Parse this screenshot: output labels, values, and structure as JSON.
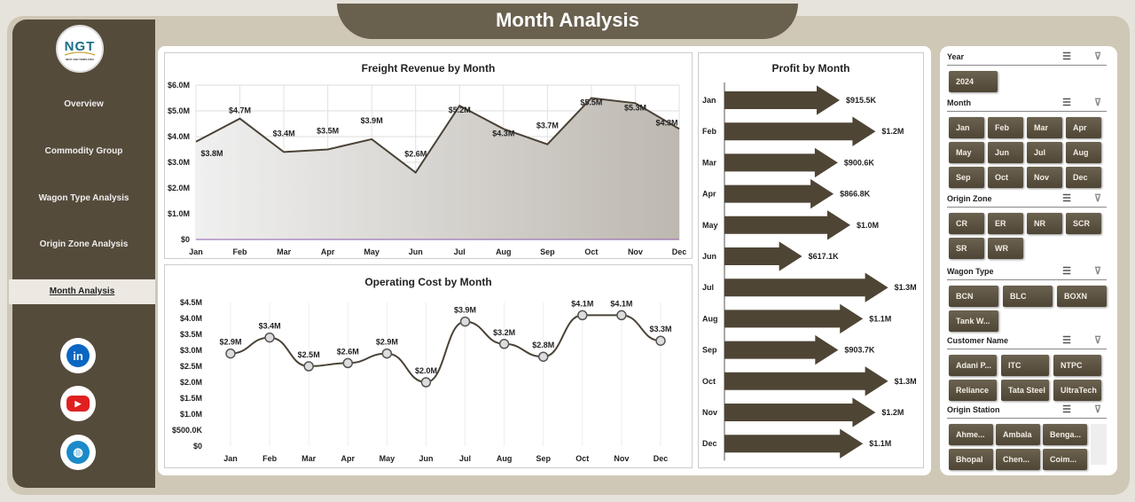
{
  "title": "Month Analysis",
  "logo": {
    "text": "NGT",
    "sub": "NEXT GEN TEMPLATES"
  },
  "nav": [
    "Overview",
    "Commodity Group",
    "Wagon Type Analysis",
    "Origin Zone Analysis",
    "Month Analysis"
  ],
  "active_nav": "Month Analysis",
  "social": [
    "linkedin-icon",
    "youtube-icon",
    "globe-icon"
  ],
  "colors": {
    "sidebar": "#554b3b",
    "button": "#5a5140",
    "arrow": "#4e4535"
  },
  "chart_data": [
    {
      "type": "area",
      "title": "Freight Revenue by Month",
      "categories": [
        "Jan",
        "Feb",
        "Mar",
        "Apr",
        "May",
        "Jun",
        "Jul",
        "Aug",
        "Sep",
        "Oct",
        "Nov",
        "Dec"
      ],
      "values": [
        3.8,
        4.7,
        3.4,
        3.5,
        3.9,
        2.6,
        5.2,
        4.3,
        3.7,
        5.5,
        5.3,
        4.3
      ],
      "labels": [
        "$3.8M",
        "$4.7M",
        "$3.4M",
        "$3.5M",
        "$3.9M",
        "$2.6M",
        "$5.2M",
        "$4.3M",
        "$3.7M",
        "$5.5M",
        "$5.3M",
        "$4.3M"
      ],
      "yticks": [
        "$0",
        "$1.0M",
        "$2.0M",
        "$3.0M",
        "$4.0M",
        "$5.0M",
        "$6.0M"
      ],
      "ylim": [
        0,
        6
      ],
      "unit": "M"
    },
    {
      "type": "line",
      "title": "Operating Cost by Month",
      "categories": [
        "Jan",
        "Feb",
        "Mar",
        "Apr",
        "May",
        "Jun",
        "Jul",
        "Aug",
        "Sep",
        "Oct",
        "Nov",
        "Dec"
      ],
      "values": [
        2.9,
        3.4,
        2.5,
        2.6,
        2.9,
        2.0,
        3.9,
        3.2,
        2.8,
        4.1,
        4.1,
        3.3
      ],
      "labels": [
        "$2.9M",
        "$3.4M",
        "$2.5M",
        "$2.6M",
        "$2.9M",
        "$2.0M",
        "$3.9M",
        "$3.2M",
        "$2.8M",
        "$4.1M",
        "$4.1M",
        "$3.3M"
      ],
      "yticks": [
        "$0",
        "$500.0K",
        "$1.0M",
        "$1.5M",
        "$2.0M",
        "$2.5M",
        "$3.0M",
        "$3.5M",
        "$4.0M",
        "$4.5M"
      ],
      "ylim": [
        0,
        4.5
      ],
      "unit": "M"
    },
    {
      "type": "bar",
      "orientation": "horizontal",
      "title": "Profit by Month",
      "categories": [
        "Jan",
        "Feb",
        "Mar",
        "Apr",
        "May",
        "Jun",
        "Jul",
        "Aug",
        "Sep",
        "Oct",
        "Nov",
        "Dec"
      ],
      "values": [
        915.5,
        1200,
        900.6,
        866.8,
        1000,
        617.1,
        1300,
        1100,
        903.7,
        1300,
        1200,
        1100
      ],
      "labels": [
        "$915.5K",
        "$1.2M",
        "$900.6K",
        "$866.8K",
        "$1.0M",
        "$617.1K",
        "$1.3M",
        "$1.1M",
        "$903.7K",
        "$1.3M",
        "$1.2M",
        "$1.1M"
      ],
      "unit": "K"
    }
  ],
  "slicers": [
    {
      "title": "Year",
      "items": [
        "2024"
      ]
    },
    {
      "title": "Month",
      "items": [
        "Jan",
        "Feb",
        "Mar",
        "Apr",
        "May",
        "Jun",
        "Jul",
        "Aug",
        "Sep",
        "Oct",
        "Nov",
        "Dec"
      ]
    },
    {
      "title": "Origin Zone",
      "items": [
        "CR",
        "ER",
        "NR",
        "SCR",
        "SR",
        "WR"
      ]
    },
    {
      "title": "Wagon Type",
      "items": [
        "BCN",
        "BLC",
        "BOXN",
        "Tank W..."
      ]
    },
    {
      "title": "Customer Name",
      "items": [
        "Adani P...",
        "ITC",
        "NTPC",
        "Reliance",
        "Tata Steel",
        "UltraTech"
      ]
    },
    {
      "title": "Origin Station",
      "items": [
        "Ahme...",
        "Ambala",
        "Benga...",
        "Bhopal",
        "Chen...",
        "Coim..."
      ]
    }
  ]
}
